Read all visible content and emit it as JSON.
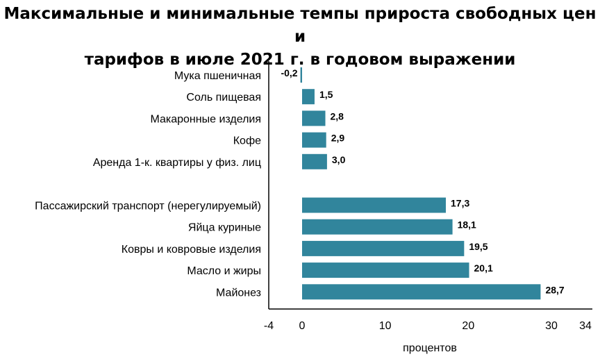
{
  "chart_data": {
    "type": "bar",
    "orientation": "horizontal",
    "title_lines": [
      "Максимальные и минимальные темпы прироста свободных цен и",
      "тарифов в июле 2021 г. в годовом выражении"
    ],
    "xlabel": "процентов",
    "ylabel": "",
    "xlim": [
      -4,
      34
    ],
    "xticks": [
      -4,
      0,
      10,
      20,
      30,
      34
    ],
    "xtick_labels": [
      "-4",
      "0",
      "10",
      "20",
      "30",
      "34"
    ],
    "grid": false,
    "legend": "none",
    "bar_color": "#31859c",
    "categories": [
      "Мука пшеничная",
      "Соль пищевая",
      "Макаронные изделия",
      "Кофе",
      "Аренда 1-к. квартиры у физ. лиц",
      "Пассажирский транспорт (нерегулируемый)",
      "Яйца куриные",
      "Ковры и ковровые изделия",
      "Масло и жиры",
      "Майонез"
    ],
    "values": [
      -0.2,
      1.5,
      2.8,
      2.9,
      3.0,
      17.3,
      18.1,
      19.5,
      20.1,
      28.7
    ],
    "value_labels": [
      "-0,2",
      "1,5",
      "2,8",
      "2,9",
      "3,0",
      "17,3",
      "18,1",
      "19,5",
      "20,1",
      "28,7"
    ],
    "groups": [
      {
        "name": "",
        "count": 5
      },
      {
        "name": "",
        "count": 5
      }
    ]
  }
}
